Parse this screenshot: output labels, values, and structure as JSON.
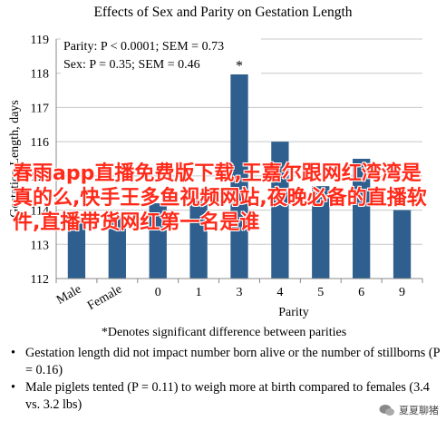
{
  "chart_data": {
    "type": "bar",
    "title": "Effects of Sex and Parity on Gestation Length",
    "xlabel": "Parity",
    "ylabel": "Gestation Length, days",
    "categories": [
      "Male",
      "Female",
      "0",
      "1",
      "3",
      "4",
      "5",
      "6",
      "9"
    ],
    "values": [
      113.8,
      113.8,
      114.2,
      114.3,
      118.0,
      116.0,
      114.7,
      115.5,
      114.0
    ],
    "asterisk_index": 4,
    "ylim": [
      112,
      119
    ],
    "yticks": [
      "112",
      "113",
      "114",
      "115",
      "116",
      "117",
      "118",
      "119"
    ],
    "grid": true,
    "bar_color": "#2e5f8e",
    "stat_lines": [
      "Parity: P < 0.0001; SEM = 0.73",
      "Sex: P = 0.35; SEM = 0.46"
    ],
    "asterisk": "*",
    "footnote": "*Denotes significant difference between parities"
  },
  "notes": [
    {
      "bullet": "•",
      "text": "Gestation length did not impact number born alive or the number of stillborns (P = 0.16)"
    },
    {
      "bullet": "•",
      "text": "Male piglets tented (P = 0.11) to weigh more at birth compared to females (3.4 vs. 3.2 lbs)"
    }
  ],
  "overlay_text": "春雨app直播免费版下载,王嘉尔跟网红湾湾是真的么,快手王多鱼视频网站,夜晚必备的直播软件,直播带货网红第一名是谁",
  "watermark": "夏夏聊猪",
  "colors": {
    "overlay": "#ff2a1a",
    "grid": "#c8c8c8"
  }
}
